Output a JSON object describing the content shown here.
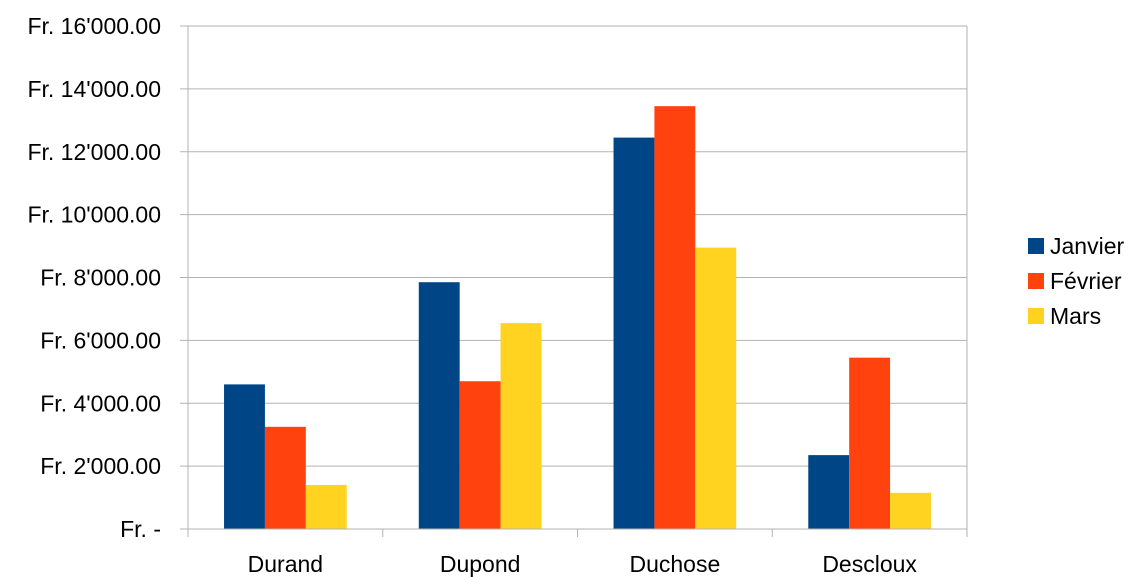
{
  "chart_data": {
    "type": "bar",
    "title": "",
    "xlabel": "",
    "ylabel": "",
    "categories": [
      "Durand",
      "Dupond",
      "Duchose",
      "Descloux"
    ],
    "series": [
      {
        "name": "Janvier",
        "color": "#004586",
        "values": [
          4600,
          7850,
          12450,
          2350
        ]
      },
      {
        "name": "Février",
        "color": "#ff420e",
        "values": [
          3250,
          4700,
          13450,
          5450
        ]
      },
      {
        "name": "Mars",
        "color": "#ffd320",
        "values": [
          1400,
          6550,
          8950,
          1150
        ]
      }
    ],
    "ylim": [
      0,
      16000
    ],
    "yticks": [
      0,
      2000,
      4000,
      6000,
      8000,
      10000,
      12000,
      14000,
      16000
    ],
    "ytick_labels": [
      "Fr. -",
      "Fr. 2'000.00",
      "Fr. 4'000.00",
      "Fr. 6'000.00",
      "Fr. 8'000.00",
      "Fr. 10'000.00",
      "Fr. 12'000.00",
      "Fr. 14'000.00",
      "Fr. 16'000.00"
    ],
    "grid": true,
    "legend_position": "right"
  }
}
